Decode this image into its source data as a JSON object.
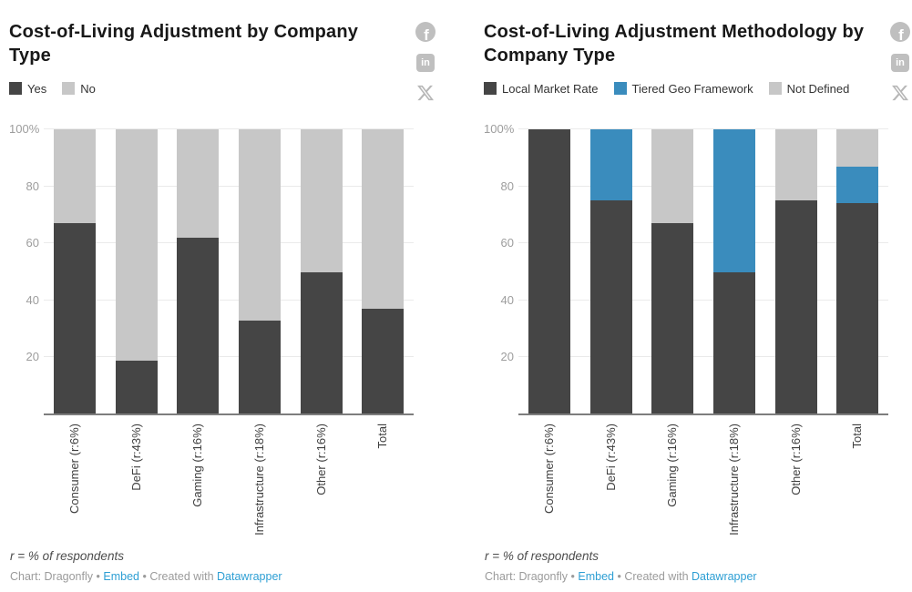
{
  "chart_data": [
    {
      "type": "bar",
      "stacked": true,
      "orientation": "vertical",
      "title": "Cost-of-Living Adjustment by Company Type",
      "categories": [
        "Consumer (r:6%)",
        "DeFi (r:43%)",
        "Gaming (r:16%)",
        "Infrastructure (r:18%)",
        "Other (r:16%)",
        "Total"
      ],
      "series": [
        {
          "name": "Yes",
          "color": "#454545",
          "values": [
            67,
            19,
            62,
            33,
            50,
            37
          ]
        },
        {
          "name": "No",
          "color": "#c7c7c7",
          "values": [
            33,
            81,
            38,
            67,
            50,
            63
          ]
        }
      ],
      "xlabel": "",
      "ylabel": "",
      "ylim": [
        0,
        100
      ],
      "yticks": [
        20,
        40,
        60,
        80,
        100
      ],
      "ytick_labels": [
        "20",
        "40",
        "60",
        "80",
        "100%"
      ],
      "grid": true,
      "legend_position": "top"
    },
    {
      "type": "bar",
      "stacked": true,
      "orientation": "vertical",
      "title": "Cost-of-Living Adjustment Methodology by Company Type",
      "categories": [
        "Consumer (r:6%)",
        "DeFi (r:43%)",
        "Gaming (r:16%)",
        "Infrastructure (r:18%)",
        "Other (r:16%)",
        "Total"
      ],
      "series": [
        {
          "name": "Local Market Rate",
          "color": "#454545",
          "values": [
            100,
            75,
            67,
            50,
            75,
            74
          ]
        },
        {
          "name": "Tiered Geo Framework",
          "color": "#3a8cbd",
          "values": [
            0,
            25,
            0,
            50,
            0,
            13
          ]
        },
        {
          "name": "Not Defined",
          "color": "#c7c7c7",
          "values": [
            0,
            0,
            33,
            0,
            25,
            13
          ]
        }
      ],
      "xlabel": "",
      "ylabel": "",
      "ylim": [
        0,
        100
      ],
      "yticks": [
        20,
        40,
        60,
        80,
        100
      ],
      "ytick_labels": [
        "20",
        "40",
        "60",
        "80",
        "100%"
      ],
      "grid": true,
      "legend_position": "top"
    }
  ],
  "footer": {
    "footnote": "r = % of respondents",
    "credit_prefix": "Chart: Dragonfly",
    "separator": "•",
    "embed_label": "Embed",
    "created_with": "Created with",
    "datawrapper_label": "Datawrapper"
  },
  "icons": {
    "facebook_glyph": "f",
    "linkedin_glyph": "in"
  },
  "colors": {
    "series_dark": "#454545",
    "series_blue": "#3a8cbd",
    "series_gray": "#c7c7c7",
    "link_blue": "#2e9fd4",
    "social_icon_gray": "#bfbfbf",
    "axis_line": "#7d7d7d",
    "gridline": "#eaeaea"
  }
}
